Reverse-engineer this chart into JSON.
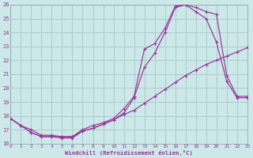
{
  "xlabel": "Windchill (Refroidissement éolien,°C)",
  "bg_color": "#cce8e8",
  "grid_color": "#aacccc",
  "line_color": "#993399",
  "xlim": [
    0,
    23
  ],
  "ylim": [
    16,
    26
  ],
  "xticks": [
    0,
    1,
    2,
    3,
    4,
    5,
    6,
    7,
    8,
    9,
    10,
    11,
    12,
    13,
    14,
    15,
    16,
    17,
    18,
    19,
    20,
    21,
    22,
    23
  ],
  "yticks": [
    16,
    17,
    18,
    19,
    20,
    21,
    22,
    23,
    24,
    25,
    26
  ],
  "line1_x": [
    0,
    1,
    2,
    3,
    4,
    5,
    6,
    7,
    8,
    9,
    10,
    11,
    12,
    13,
    14,
    15,
    16,
    17,
    18,
    19,
    20,
    21,
    22,
    23
  ],
  "line1_y": [
    17.8,
    17.3,
    16.8,
    16.5,
    16.5,
    16.5,
    16.5,
    17.0,
    17.3,
    17.5,
    17.8,
    18.5,
    19.4,
    22.8,
    23.2,
    24.3,
    25.9,
    26.0,
    25.8,
    25.5,
    25.3,
    20.9,
    19.4,
    19.4
  ],
  "line2_x": [
    0,
    1,
    2,
    3,
    4,
    5,
    6,
    7,
    8,
    9,
    10,
    11,
    12,
    13,
    14,
    15,
    16,
    17,
    18,
    19,
    20,
    21,
    22,
    23
  ],
  "line2_y": [
    17.8,
    17.3,
    16.8,
    16.5,
    16.5,
    16.4,
    16.4,
    16.9,
    17.1,
    17.4,
    17.7,
    18.2,
    19.3,
    21.5,
    22.5,
    24.0,
    25.8,
    26.0,
    25.5,
    25.0,
    23.3,
    20.5,
    19.3,
    19.3
  ],
  "line3_x": [
    0,
    1,
    2,
    3,
    4,
    5,
    6,
    7,
    8,
    9,
    10,
    11,
    12,
    13,
    14,
    15,
    16,
    17,
    18,
    19,
    20,
    21,
    22,
    23
  ],
  "line3_y": [
    17.8,
    17.3,
    17.0,
    16.6,
    16.6,
    16.5,
    16.5,
    16.9,
    17.1,
    17.4,
    17.7,
    18.1,
    18.4,
    18.9,
    19.4,
    19.9,
    20.4,
    20.9,
    21.3,
    21.7,
    22.0,
    22.3,
    22.6,
    22.9
  ]
}
